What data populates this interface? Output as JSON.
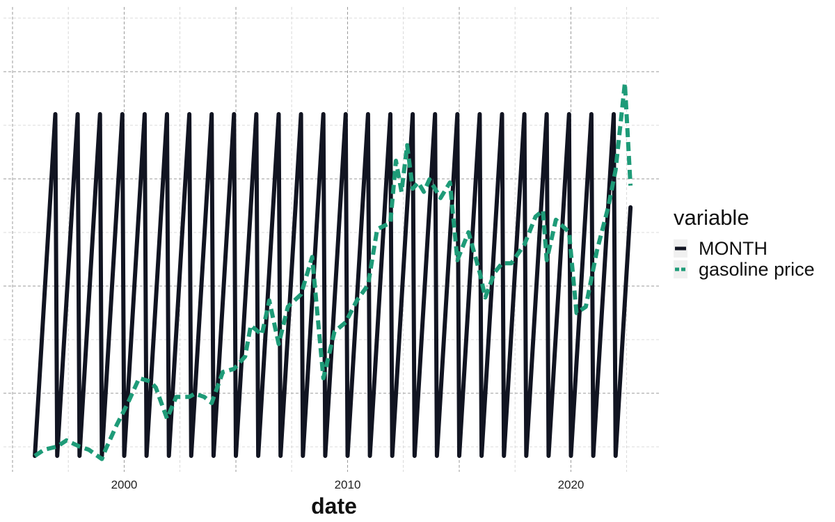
{
  "chart_data": {
    "type": "line",
    "title": "",
    "xlabel": "date",
    "ylabel": "",
    "xlim": [
      "1995-01-01",
      "2023-12-31"
    ],
    "ylim": [
      0,
      12
    ],
    "x_ticks": [
      {
        "date": "2000-01-01",
        "label": "2000"
      },
      {
        "date": "2010-01-01",
        "label": "2010"
      },
      {
        "date": "2020-01-01",
        "label": "2020"
      }
    ],
    "y_ticks_shown": false,
    "grid": true,
    "legend": {
      "title": "variable",
      "position": "right"
    },
    "series": [
      {
        "name": "MONTH",
        "color": "#111421",
        "style": "solid",
        "pattern": "monthly sawtooth 1 to 12",
        "start": "1996-01-01",
        "end": "2022-09-01"
      },
      {
        "name": "gasoline price",
        "color": "#1e9b78",
        "style": "dashed",
        "points": [
          [
            "1996-01-01",
            1.0
          ],
          [
            "1996-06-01",
            1.2
          ],
          [
            "1997-01-01",
            1.3
          ],
          [
            "1997-06-01",
            1.5
          ],
          [
            "1998-01-01",
            1.3
          ],
          [
            "1998-06-01",
            1.2
          ],
          [
            "1999-01-01",
            0.9
          ],
          [
            "1999-03-01",
            1.2
          ],
          [
            "1999-09-01",
            2.0
          ],
          [
            "2000-03-01",
            2.7
          ],
          [
            "2000-09-01",
            3.5
          ],
          [
            "2001-03-01",
            3.4
          ],
          [
            "2001-06-01",
            3.2
          ],
          [
            "2001-12-01",
            2.2
          ],
          [
            "2002-05-01",
            2.9
          ],
          [
            "2002-12-01",
            2.9
          ],
          [
            "2003-03-01",
            3.0
          ],
          [
            "2003-08-01",
            2.9
          ],
          [
            "2003-12-01",
            2.7
          ],
          [
            "2004-06-01",
            3.7
          ],
          [
            "2004-12-01",
            3.8
          ],
          [
            "2005-06-01",
            4.2
          ],
          [
            "2005-09-01",
            5.2
          ],
          [
            "2006-03-01",
            4.9
          ],
          [
            "2006-07-01",
            6.0
          ],
          [
            "2006-12-01",
            4.6
          ],
          [
            "2007-05-01",
            5.8
          ],
          [
            "2007-12-01",
            6.2
          ],
          [
            "2008-06-01",
            7.4
          ],
          [
            "2008-12-01",
            3.5
          ],
          [
            "2009-06-01",
            5.0
          ],
          [
            "2009-12-01",
            5.3
          ],
          [
            "2010-06-01",
            6.0
          ],
          [
            "2010-12-01",
            6.5
          ],
          [
            "2011-05-01",
            8.3
          ],
          [
            "2011-12-01",
            8.5
          ],
          [
            "2012-03-01",
            10.5
          ],
          [
            "2012-06-01",
            9.5
          ],
          [
            "2012-09-01",
            11.0
          ],
          [
            "2012-12-01",
            9.6
          ],
          [
            "2013-03-01",
            9.8
          ],
          [
            "2013-06-01",
            9.5
          ],
          [
            "2013-09-01",
            9.9
          ],
          [
            "2014-03-01",
            9.3
          ],
          [
            "2014-08-01",
            9.8
          ],
          [
            "2014-12-01",
            7.3
          ],
          [
            "2015-06-01",
            8.2
          ],
          [
            "2015-12-01",
            6.9
          ],
          [
            "2016-03-01",
            6.1
          ],
          [
            "2016-08-01",
            6.9
          ],
          [
            "2016-12-01",
            7.2
          ],
          [
            "2017-05-01",
            7.2
          ],
          [
            "2017-12-01",
            7.8
          ],
          [
            "2018-06-01",
            8.7
          ],
          [
            "2018-10-01",
            8.9
          ],
          [
            "2018-12-01",
            7.3
          ],
          [
            "2019-05-01",
            8.6
          ],
          [
            "2019-12-01",
            8.2
          ],
          [
            "2020-04-01",
            5.6
          ],
          [
            "2020-09-01",
            5.8
          ],
          [
            "2021-03-01",
            7.6
          ],
          [
            "2021-09-01",
            9.0
          ],
          [
            "2022-01-01",
            10.2
          ],
          [
            "2022-06-01",
            13.0
          ],
          [
            "2022-09-01",
            9.7
          ]
        ]
      }
    ]
  }
}
